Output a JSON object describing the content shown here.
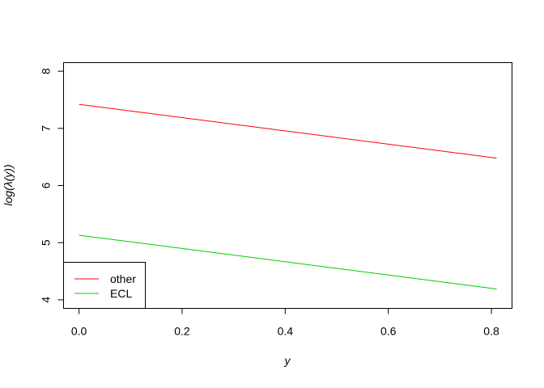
{
  "chart_data": {
    "type": "line",
    "title": "",
    "xlabel": "y",
    "ylabel": "log(λ(y))",
    "xlim": [
      -0.03,
      0.84
    ],
    "ylim": [
      3.85,
      8.15
    ],
    "x_ticks": [
      0.0,
      0.2,
      0.4,
      0.6,
      0.8
    ],
    "x_tick_labels": [
      "0.0",
      "0.2",
      "0.4",
      "0.6",
      "0.8"
    ],
    "y_ticks": [
      4,
      5,
      6,
      7,
      8
    ],
    "y_tick_labels": [
      "4",
      "5",
      "6",
      "7",
      "8"
    ],
    "grid": false,
    "legend_position": "bottom-left",
    "series": [
      {
        "name": "other",
        "color": "#ff0000",
        "x": [
          0.0,
          0.81
        ],
        "y": [
          7.42,
          6.48
        ]
      },
      {
        "name": "ECL",
        "color": "#00cd00",
        "x": [
          0.0,
          0.81
        ],
        "y": [
          5.13,
          4.19
        ]
      }
    ]
  }
}
